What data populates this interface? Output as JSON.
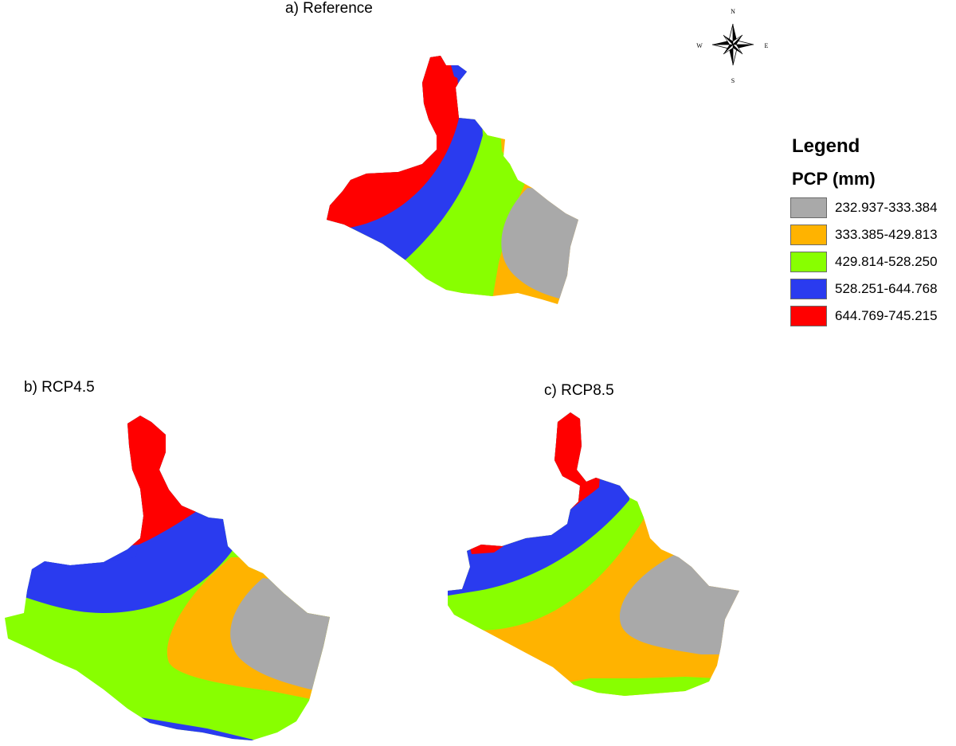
{
  "panels": {
    "reference": "a) Reference",
    "rcp45": "b) RCP4.5",
    "rcp85": "c) RCP8.5"
  },
  "legend": {
    "title": "Legend",
    "subtitle": "PCP (mm)",
    "classes": [
      {
        "label": "232.937-333.384",
        "color": "#a9a9a9"
      },
      {
        "label": "333.385-429.813",
        "color": "#ffb300"
      },
      {
        "label": "429.814-528.250",
        "color": "#88ff00"
      },
      {
        "label": "528.251-644.768",
        "color": "#2a3bef"
      },
      {
        "label": "644.769-745.215",
        "color": "#ff0000"
      }
    ]
  },
  "compass": {
    "n": "N",
    "s": "S",
    "e": "E",
    "w": "W"
  }
}
